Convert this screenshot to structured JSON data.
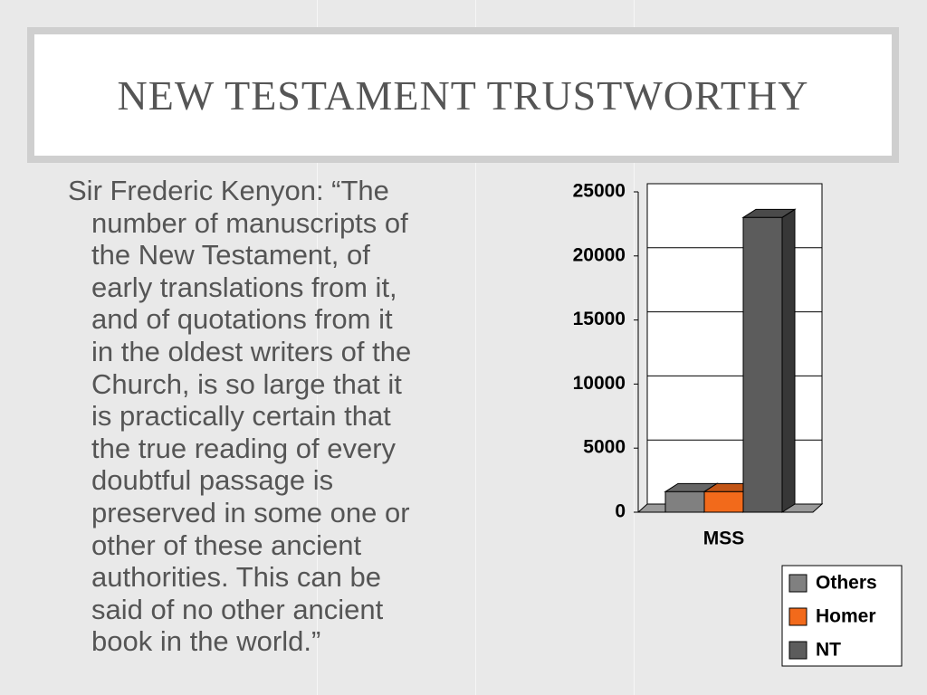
{
  "slide": {
    "title": "NEW TESTAMENT TRUSTWORTHY",
    "quote_lines": [
      "Sir Frederic Kenyon: “The",
      "number of manuscripts of",
      "the New Testament, of",
      "early translations from it,",
      "and of quotations from it",
      "in the oldest writers of the",
      "Church, is so large that it",
      "is practically certain that",
      "the true reading of every",
      "doubtful passage is",
      "preserved in some one or",
      "other of these ancient",
      "authorities. This can be",
      "said of no other ancient",
      "book in the world.”"
    ]
  },
  "chart_data": {
    "type": "bar3d",
    "categories": [
      "MSS"
    ],
    "series": [
      {
        "name": "Others",
        "color": "#808080",
        "values": [
          1600
        ]
      },
      {
        "name": "Homer",
        "color": "#f26a1b",
        "values": [
          1600
        ]
      },
      {
        "name": "NT",
        "color": "#5c5c5c",
        "values": [
          23000
        ]
      }
    ],
    "ylim": [
      0,
      25000
    ],
    "yticks": [
      0,
      5000,
      10000,
      15000,
      20000,
      25000
    ],
    "grid": true,
    "legend": "bottom-right"
  }
}
